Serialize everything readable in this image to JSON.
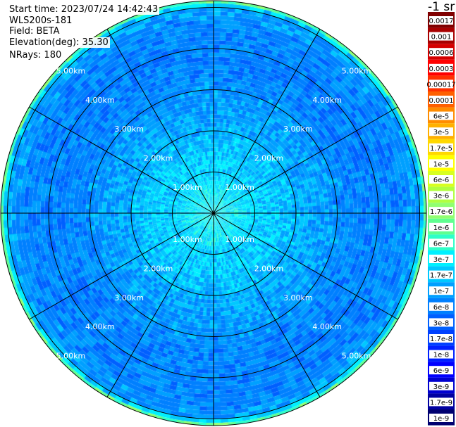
{
  "header": {
    "start_time": "Start time: 2023/07/24 14:42:43",
    "instrument": "WLS200s-181",
    "field": "Field: BETA",
    "elevation": "Elevation(deg): 35.30",
    "nrays": "NRays: 180"
  },
  "colorbar": {
    "title": "-1 sr",
    "segments": [
      {
        "label": "0.0017",
        "color": "#800000"
      },
      {
        "label": "0.001",
        "color": "#a80000"
      },
      {
        "label": "0.0006",
        "color": "#d40000"
      },
      {
        "label": "0.0003",
        "color": "#ff0000"
      },
      {
        "label": "0.00017",
        "color": "#ff3000"
      },
      {
        "label": "0.0001",
        "color": "#ff6000"
      },
      {
        "label": "6e-5",
        "color": "#ff8c00"
      },
      {
        "label": "3e-5",
        "color": "#ffb000"
      },
      {
        "label": "1.7e-5",
        "color": "#ffd800"
      },
      {
        "label": "1e-5",
        "color": "#ffff00"
      },
      {
        "label": "6e-6",
        "color": "#d8ff20"
      },
      {
        "label": "3e-6",
        "color": "#b0ff40"
      },
      {
        "label": "1.7e-6",
        "color": "#90ff70"
      },
      {
        "label": "1e-6",
        "color": "#60ff90"
      },
      {
        "label": "6e-7",
        "color": "#30ffc8"
      },
      {
        "label": "3e-7",
        "color": "#00f0ff"
      },
      {
        "label": "1.7e-7",
        "color": "#00c8ff"
      },
      {
        "label": "1e-7",
        "color": "#00a0ff"
      },
      {
        "label": "6e-8",
        "color": "#0080ff"
      },
      {
        "label": "3e-8",
        "color": "#0060ff"
      },
      {
        "label": "1.7e-8",
        "color": "#0040ff"
      },
      {
        "label": "1e-8",
        "color": "#0020ff"
      },
      {
        "label": "6e-9",
        "color": "#0000ff"
      },
      {
        "label": "3e-9",
        "color": "#0000d0"
      },
      {
        "label": "1.7e-9",
        "color": "#0000a0"
      },
      {
        "label": "1e-9",
        "color": "#000070"
      }
    ]
  },
  "chart_data": {
    "type": "heatmap",
    "projection": "polar PPI",
    "field": "BETA",
    "elevation_deg": 35.3,
    "n_rays": 180,
    "range_rings_km": [
      1,
      2,
      3,
      4,
      5
    ],
    "range_labels": [
      "1.00km",
      "2.00km",
      "3.00km",
      "4.00km",
      "5.00km"
    ],
    "spokes_deg": [
      0,
      30,
      60,
      90,
      120,
      150,
      180,
      210,
      240,
      270,
      300,
      330
    ],
    "max_range_km": 5.8,
    "radial_profile": [
      {
        "range_km": 0.0,
        "beta": 3e-07
      },
      {
        "range_km": 0.5,
        "beta": 3e-07
      },
      {
        "range_km": 1.0,
        "beta": 2e-07
      },
      {
        "range_km": 1.5,
        "beta": 1.7e-07
      },
      {
        "range_km": 2.5,
        "beta": 1e-07
      },
      {
        "range_km": 3.5,
        "beta": 6e-08
      },
      {
        "range_km": 4.5,
        "beta": 6e-08
      },
      {
        "range_km": 5.0,
        "beta": 1e-07
      },
      {
        "range_km": 5.2,
        "beta": 1.7e-06
      },
      {
        "range_km": 5.35,
        "beta": 1.7e-05
      },
      {
        "range_km": 5.5,
        "beta": 1.7e-06
      },
      {
        "range_km": 5.65,
        "beta": 1e-07
      },
      {
        "range_km": 5.8,
        "beta": 6e-08
      }
    ]
  }
}
